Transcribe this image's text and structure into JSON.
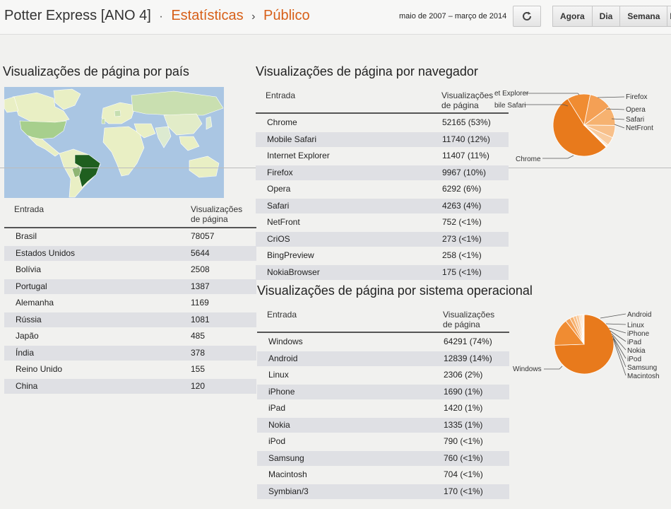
{
  "header": {
    "blog_title": "Potter Express [ANO 4]",
    "separator": "·",
    "crumb_stats": "Estatísticas",
    "crumb_arrow": "›",
    "crumb_public": "Público",
    "date_range": "maio de 2007 – março de 2014",
    "refresh_icon": "refresh-icon",
    "tabs": [
      "Agora",
      "Dia",
      "Semana",
      "M"
    ]
  },
  "country": {
    "title": "Visualizações de página por país",
    "col_entry": "Entrada",
    "col_views_1": "Visualizações",
    "col_views_2": "de página",
    "highlight_color": "#1f5f1f",
    "rows": [
      {
        "name": "Brasil",
        "value": "78057"
      },
      {
        "name": "Estados Unidos",
        "value": "5644"
      },
      {
        "name": "Bolívia",
        "value": "2508"
      },
      {
        "name": "Portugal",
        "value": "1387"
      },
      {
        "name": "Alemanha",
        "value": "1169"
      },
      {
        "name": "Rússia",
        "value": "1081"
      },
      {
        "name": "Japão",
        "value": "485"
      },
      {
        "name": "Índia",
        "value": "378"
      },
      {
        "name": "Reino Unido",
        "value": "155"
      },
      {
        "name": "China",
        "value": "120"
      }
    ]
  },
  "browser": {
    "title": "Visualizações de página por navegador",
    "col_entry": "Entrada",
    "col_views_1": "Visualizações",
    "col_views_2": "de página",
    "rows": [
      {
        "name": "Chrome",
        "value": "52165 (53%)"
      },
      {
        "name": "Mobile Safari",
        "value": "11740 (12%)"
      },
      {
        "name": "Internet Explorer",
        "value": "11407 (11%)"
      },
      {
        "name": "Firefox",
        "value": "9967 (10%)"
      },
      {
        "name": "Opera",
        "value": "6292 (6%)"
      },
      {
        "name": "Safari",
        "value": "4263 (4%)"
      },
      {
        "name": "NetFront",
        "value": "752 (<1%)"
      },
      {
        "name": "CriOS",
        "value": "273 (<1%)"
      },
      {
        "name": "BingPreview",
        "value": "258 (<1%)"
      },
      {
        "name": "NokiaBrowser",
        "value": "175 (<1%)"
      }
    ],
    "pie_labels": {
      "ie": "et Explorer",
      "msafari": "bile Safari",
      "firefox": "Firefox",
      "opera": "Opera",
      "safari": "Safari",
      "netfront": "NetFront",
      "chrome": "Chrome"
    }
  },
  "os": {
    "title": "Visualizações de página por sistema operacional",
    "col_entry": "Entrada",
    "col_views_1": "Visualizações",
    "col_views_2": "de página",
    "rows": [
      {
        "name": "Windows",
        "value": "64291 (74%)"
      },
      {
        "name": "Android",
        "value": "12839 (14%)"
      },
      {
        "name": "Linux",
        "value": "2306 (2%)"
      },
      {
        "name": "iPhone",
        "value": "1690 (1%)"
      },
      {
        "name": "iPad",
        "value": "1420 (1%)"
      },
      {
        "name": "Nokia",
        "value": "1335 (1%)"
      },
      {
        "name": "iPod",
        "value": "790 (<1%)"
      },
      {
        "name": "Samsung",
        "value": "760 (<1%)"
      },
      {
        "name": "Macintosh",
        "value": "704 (<1%)"
      },
      {
        "name": "Symbian/3",
        "value": "170 (<1%)"
      }
    ],
    "pie_labels": {
      "android": "Android",
      "linux": "Linux",
      "iphone": "iPhone",
      "ipad": "iPad",
      "nokia": "Nokia",
      "ipod": "iPod",
      "samsung": "Samsung",
      "macintosh": "Macintosh",
      "windows": "Windows"
    }
  },
  "colors": {
    "accent": "#d75f18",
    "pie_main": "#e87a1c",
    "row_alt": "#dfe0e4"
  }
}
